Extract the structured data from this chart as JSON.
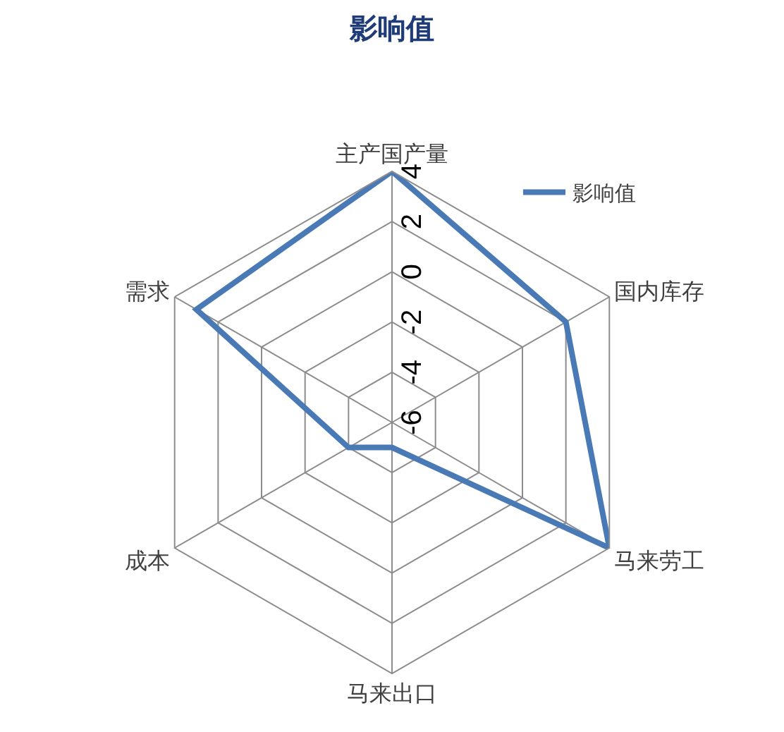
{
  "chart_data": {
    "type": "radar",
    "title": "影响值",
    "categories": [
      "主产国产量",
      "国内库存",
      "马来劳工",
      "马来出口",
      "成本",
      "需求"
    ],
    "series": [
      {
        "name": "影响值",
        "color": "#4a7ab5",
        "values": [
          4,
          2,
          4,
          -5,
          -4,
          3
        ]
      }
    ],
    "ylim": [
      -6,
      4
    ],
    "yticks": [
      -6,
      -4,
      -2,
      0,
      2,
      4
    ],
    "legend": "top right",
    "marker": "none",
    "line_style": "solid",
    "grid": true
  }
}
